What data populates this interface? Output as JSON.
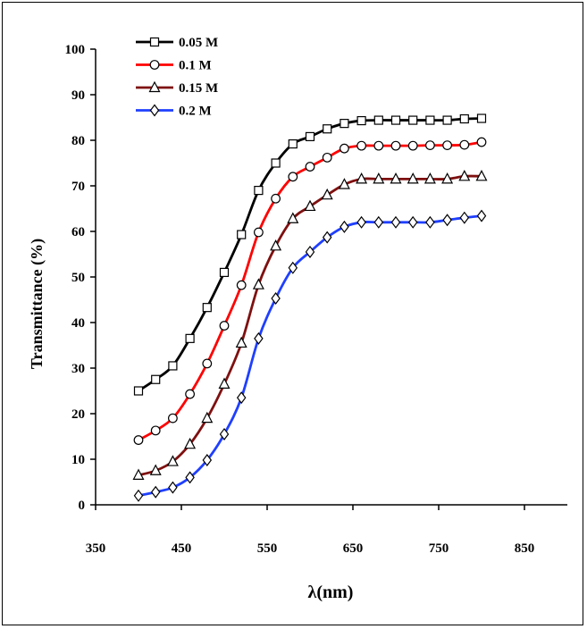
{
  "chart_data": {
    "type": "line",
    "xlabel": "λ(nm)",
    "ylabel": "Transmittance (%)",
    "xlim": [
      350,
      900
    ],
    "ylim": [
      0,
      100
    ],
    "x_ticks": [
      350,
      450,
      550,
      650,
      750,
      850
    ],
    "y_ticks": [
      0,
      10,
      20,
      30,
      40,
      50,
      60,
      70,
      80,
      90,
      100
    ],
    "grid": false,
    "legend_position": "top-left",
    "x": [
      400,
      420,
      440,
      460,
      480,
      500,
      520,
      540,
      560,
      580,
      600,
      620,
      640,
      660,
      680,
      700,
      720,
      740,
      760,
      780,
      800
    ],
    "series": [
      {
        "name": "0.05 M",
        "color": "#000000",
        "marker": "square",
        "values": [
          25.0,
          27.5,
          30.5,
          36.5,
          43.3,
          51.0,
          59.3,
          69.0,
          75.0,
          79.2,
          80.8,
          82.5,
          83.7,
          84.3,
          84.4,
          84.4,
          84.4,
          84.4,
          84.4,
          84.7,
          84.8
        ]
      },
      {
        "name": "0.1 M",
        "color": "#ff0000",
        "marker": "circle",
        "values": [
          14.2,
          16.3,
          19.0,
          24.3,
          31.0,
          39.3,
          48.2,
          59.8,
          67.2,
          72.0,
          74.2,
          76.2,
          78.2,
          78.8,
          78.8,
          78.8,
          78.8,
          78.9,
          78.9,
          79.0,
          79.6
        ]
      },
      {
        "name": "0.15 M",
        "color": "#7f1010",
        "marker": "triangle",
        "values": [
          6.5,
          7.5,
          9.5,
          13.3,
          19.0,
          26.5,
          35.5,
          48.3,
          56.8,
          62.8,
          65.5,
          68.0,
          70.3,
          71.5,
          71.5,
          71.5,
          71.5,
          71.5,
          71.5,
          72.1,
          72.1
        ]
      },
      {
        "name": "0.2 M",
        "color": "#1f3fff",
        "marker": "diamond",
        "values": [
          2.0,
          2.8,
          3.8,
          6.0,
          9.8,
          15.5,
          23.5,
          36.5,
          45.3,
          52.0,
          55.5,
          58.7,
          61.0,
          62.0,
          62.0,
          62.0,
          62.0,
          62.0,
          62.5,
          63.0,
          63.4
        ]
      }
    ]
  }
}
